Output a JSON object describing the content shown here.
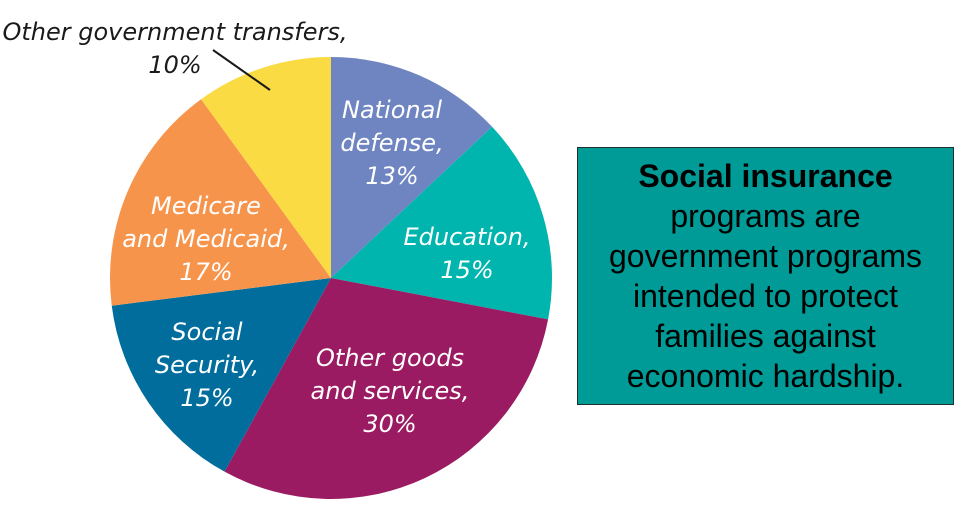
{
  "chart_data": {
    "type": "pie",
    "title": "",
    "slices": [
      {
        "label": "National defense",
        "label_lines": [
          "National",
          "defense,",
          "13%"
        ],
        "value": 13,
        "color": "#6f85c2",
        "label_color": "#ffffff"
      },
      {
        "label": "Education",
        "label_lines": [
          "Education,",
          "15%"
        ],
        "value": 15,
        "color": "#00b5ad",
        "label_color": "#ffffff"
      },
      {
        "label": "Other goods and services",
        "label_lines": [
          "Other goods",
          "and services,",
          "30%"
        ],
        "value": 30,
        "color": "#9b1b62",
        "label_color": "#ffffff"
      },
      {
        "label": "Social Security",
        "label_lines": [
          "Social",
          "Security,",
          "15%"
        ],
        "value": 15,
        "color": "#006d9c",
        "label_color": "#ffffff"
      },
      {
        "label": "Medicare and Medicaid",
        "label_lines": [
          "Medicare",
          "and Medicaid,",
          "17%"
        ],
        "value": 17,
        "color": "#f7944b",
        "label_color": "#ffffff"
      },
      {
        "label": "Other government transfers",
        "label_lines": [
          "Other government transfers,",
          "10%"
        ],
        "value": 10,
        "color": "#fbdb44",
        "label_color": "#1a1a1a",
        "label_outside": true
      }
    ],
    "start_angle": "12 o'clock",
    "direction": "clockwise"
  },
  "info_box": {
    "lines": [
      "Social insurance",
      "programs are",
      "government programs",
      "intended to protect",
      "families against",
      "economic hardship."
    ],
    "bold_line": "Social insurance",
    "background": "#009a97"
  }
}
